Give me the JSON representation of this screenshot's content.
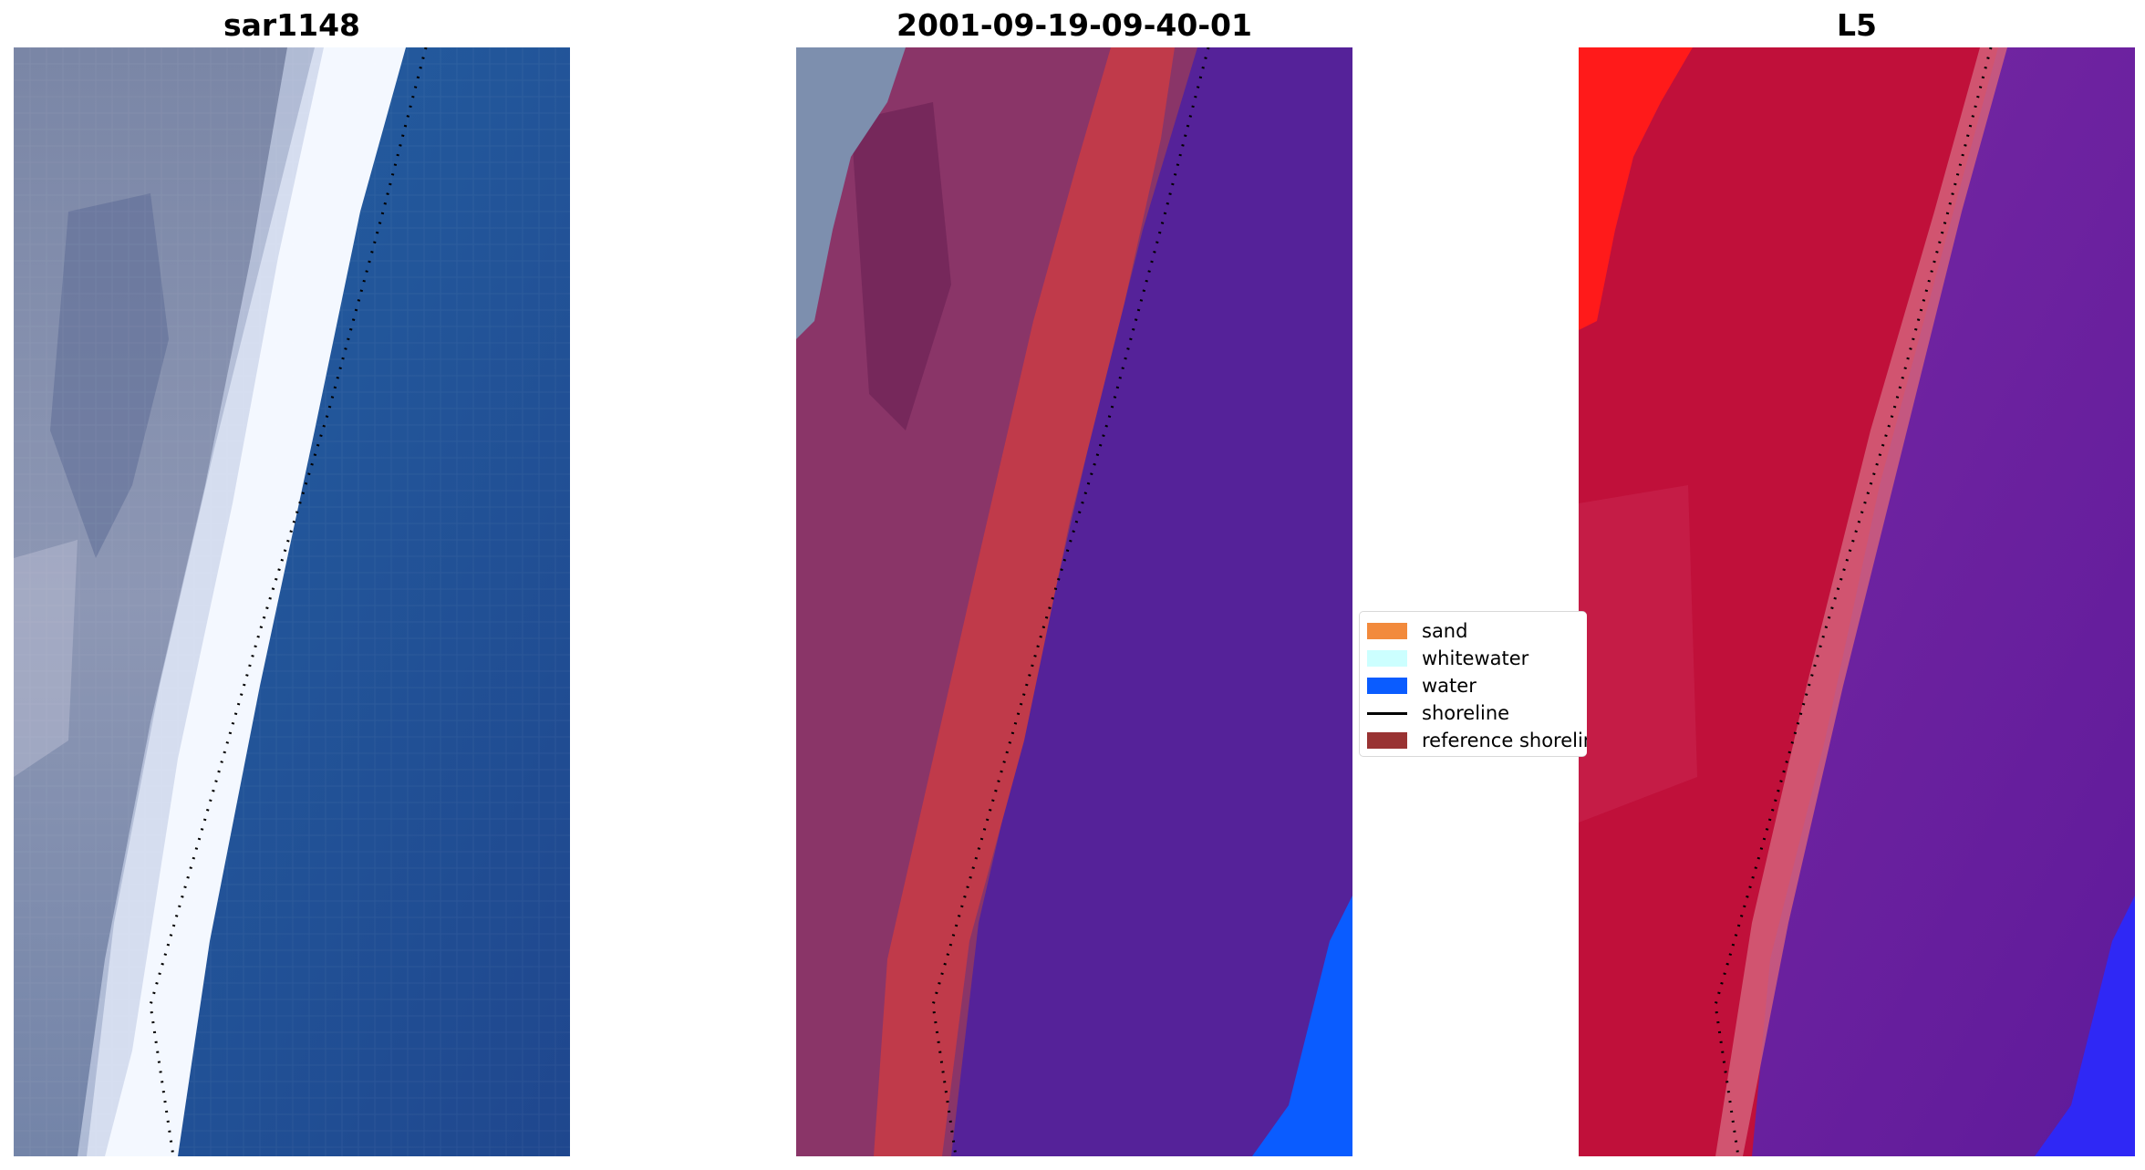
{
  "panels": {
    "left": {
      "title": "sar1148"
    },
    "middle": {
      "title": "2001-09-19-09-40-01"
    },
    "right": {
      "title": "L5"
    }
  },
  "legend": {
    "items": [
      {
        "label": "sand",
        "color": "#f28a3c",
        "kind": "patch"
      },
      {
        "label": "whitewater",
        "color": "#ccffff",
        "kind": "patch"
      },
      {
        "label": "water",
        "color": "#0a5cff",
        "kind": "patch"
      },
      {
        "label": "shoreline",
        "color": "#000000",
        "kind": "line"
      },
      {
        "label": "reference shoreline",
        "color": "#993333",
        "kind": "patch"
      }
    ]
  },
  "colors": {
    "ocean_blue": "#24569a",
    "surf_white": "#f4f8ff",
    "land_gray": "#8a95b2",
    "land_magenta": "#8a3568",
    "classified_water": "#552299",
    "sand_red": "#c03a4a",
    "bright_water": "#0a5cff",
    "land_red": "#c0103a",
    "water_purple": "#6a1fa0"
  }
}
